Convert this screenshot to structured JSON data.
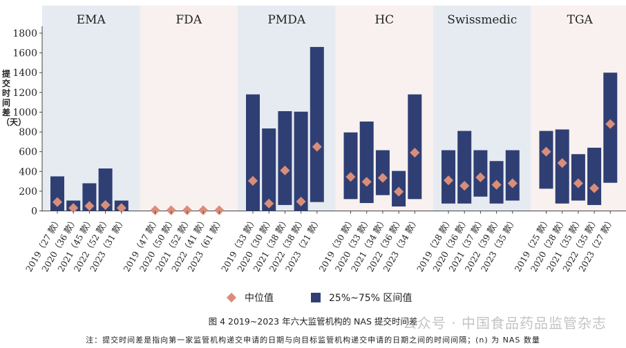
{
  "chart_data": {
    "type": "bar",
    "y_axis": {
      "ylim": [
        0,
        1800
      ],
      "ticks": [
        0,
        200,
        400,
        600,
        800,
        1000,
        1200,
        1400,
        1600,
        1800
      ]
    },
    "y_title_vertical": "提交时间差（天）",
    "legend": {
      "median_label": "中位值",
      "range_label": "25%~75% 区间值"
    },
    "colors": {
      "bar": "#2f3f74",
      "median": "#d98e79",
      "panel_blue": "#e6ebf1",
      "panel_pink": "#f8f1ef",
      "grid": "#cfd5dc"
    },
    "panels": [
      {
        "name": "EMA",
        "items": [
          {
            "label": "2019（27 款）",
            "q1": 0,
            "q3": 350,
            "median": 90
          },
          {
            "label": "2020（36 款）",
            "q1": 0,
            "q3": 105,
            "median": 30
          },
          {
            "label": "2021（45 款）",
            "q1": 0,
            "q3": 280,
            "median": 50
          },
          {
            "label": "2022（52 款）",
            "q1": 0,
            "q3": 430,
            "median": 60
          },
          {
            "label": "2023（31 款）",
            "q1": 0,
            "q3": 105,
            "median": 30
          }
        ]
      },
      {
        "name": "FDA",
        "items": [
          {
            "label": "2019（47 款）",
            "q1": 0,
            "q3": 0,
            "median": 0
          },
          {
            "label": "2020（50 款）",
            "q1": 0,
            "q3": 0,
            "median": 0
          },
          {
            "label": "2021（52 款）",
            "q1": 0,
            "q3": 0,
            "median": 0
          },
          {
            "label": "2022（41 款）",
            "q1": 0,
            "q3": 0,
            "median": 0
          },
          {
            "label": "2023（61 款）",
            "q1": 0,
            "q3": 0,
            "median": 0
          }
        ]
      },
      {
        "name": "PMDA",
        "items": [
          {
            "label": "2019（33 款）",
            "q1": 0,
            "q3": 1180,
            "median": 305
          },
          {
            "label": "2020（30 款）",
            "q1": 0,
            "q3": 835,
            "median": 75
          },
          {
            "label": "2021（38 款）",
            "q1": 60,
            "q3": 1010,
            "median": 410
          },
          {
            "label": "2022（38 款）",
            "q1": 0,
            "q3": 1005,
            "median": 95
          },
          {
            "label": "2023（21 款）",
            "q1": 90,
            "q3": 1660,
            "median": 650
          }
        ]
      },
      {
        "name": "HC",
        "items": [
          {
            "label": "2019（30 款）",
            "q1": 120,
            "q3": 795,
            "median": 345
          },
          {
            "label": "2020（33 款）",
            "q1": 80,
            "q3": 905,
            "median": 295
          },
          {
            "label": "2021（34 款）",
            "q1": 160,
            "q3": 615,
            "median": 335
          },
          {
            "label": "2022（36 款）",
            "q1": 45,
            "q3": 405,
            "median": 195
          },
          {
            "label": "2023（34 款）",
            "q1": 120,
            "q3": 1180,
            "median": 590
          }
        ]
      },
      {
        "name": "Swissmedic",
        "items": [
          {
            "label": "2019（28 款）",
            "q1": 75,
            "q3": 615,
            "median": 310
          },
          {
            "label": "2020（36 款）",
            "q1": 75,
            "q3": 810,
            "median": 255
          },
          {
            "label": "2021（37 款）",
            "q1": 145,
            "q3": 615,
            "median": 340
          },
          {
            "label": "2022（39 款）",
            "q1": 75,
            "q3": 505,
            "median": 265
          },
          {
            "label": "2023（35 款）",
            "q1": 105,
            "q3": 615,
            "median": 280
          }
        ]
      },
      {
        "name": "TGA",
        "items": [
          {
            "label": "2019（25 款）",
            "q1": 225,
            "q3": 810,
            "median": 600
          },
          {
            "label": "2020（28 款）",
            "q1": 75,
            "q3": 825,
            "median": 485
          },
          {
            "label": "2021（35 款）",
            "q1": 105,
            "q3": 575,
            "median": 280
          },
          {
            "label": "2022（35 款）",
            "q1": 60,
            "q3": 640,
            "median": 230
          },
          {
            "label": "2023（27 款）",
            "q1": 285,
            "q3": 1400,
            "median": 880
          }
        ]
      }
    ]
  },
  "caption": "图 4   2019~2023 年六大监管机构的 NAS 提交时间差",
  "note": "注：提交时间差是指向第一家监管机构递交申请的日期与向目标监管机构递交申请的日期之间的时间间隔；(n) 为 NAS 数量",
  "watermark": "公众号 · 中国食品药品监管杂志"
}
